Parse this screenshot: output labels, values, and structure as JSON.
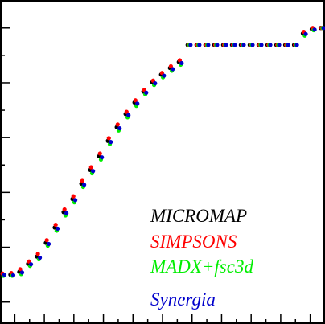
{
  "chart_data": {
    "type": "scatter",
    "x": [
      0.2,
      0.8,
      1.4,
      2.0,
      2.6,
      3.2,
      3.8,
      4.4,
      5.0,
      5.6,
      6.2,
      6.8,
      7.4,
      8.0,
      8.6,
      9.2,
      9.8,
      10.4,
      11.0,
      11.6,
      12.2,
      12.8,
      13.4,
      14.0,
      14.6,
      15.2,
      15.8,
      16.4,
      17.0,
      17.6,
      18.2,
      18.8,
      19.4,
      20.0,
      20.6,
      21.2,
      21.8
    ],
    "series": [
      {
        "name": "MICROMAP",
        "color": "#000000",
        "values": [
          0.5,
          0.5,
          0.55,
          0.7,
          0.83,
          1.08,
          1.36,
          1.64,
          1.88,
          2.16,
          2.41,
          2.66,
          2.94,
          3.19,
          3.43,
          3.64,
          3.84,
          4.01,
          4.15,
          4.27,
          4.38,
          4.69,
          4.69,
          4.69,
          4.69,
          4.69,
          4.69,
          4.69,
          4.69,
          4.69,
          4.69,
          4.69,
          4.69,
          4.69,
          4.9,
          4.98,
          5.0
        ]
      },
      {
        "name": "SIMPSONS",
        "color": "#ff0000",
        "values": [
          0.52,
          0.53,
          0.6,
          0.74,
          0.88,
          1.13,
          1.41,
          1.69,
          1.93,
          2.21,
          2.46,
          2.71,
          2.99,
          3.24,
          3.47,
          3.68,
          3.87,
          4.04,
          4.18,
          4.3,
          4.41,
          4.69,
          4.69,
          4.69,
          4.69,
          4.69,
          4.69,
          4.69,
          4.69,
          4.69,
          4.69,
          4.69,
          4.69,
          4.69,
          4.93,
          5.0,
          5.0
        ]
      },
      {
        "name": "MADX+fsc3d",
        "color": "#00ee00",
        "values": [
          0.48,
          0.48,
          0.51,
          0.66,
          0.78,
          1.03,
          1.3,
          1.58,
          1.82,
          2.1,
          2.35,
          2.6,
          2.88,
          3.13,
          3.37,
          3.58,
          3.79,
          3.96,
          4.1,
          4.22,
          4.33,
          4.69,
          4.69,
          4.69,
          4.69,
          4.69,
          4.69,
          4.69,
          4.69,
          4.69,
          4.69,
          4.69,
          4.69,
          4.69,
          4.86,
          4.96,
          5.0
        ]
      },
      {
        "name": "Synergia",
        "color": "#0000cc",
        "values": [
          0.5,
          0.49,
          0.54,
          0.69,
          0.81,
          1.06,
          1.34,
          1.62,
          1.86,
          2.14,
          2.39,
          2.64,
          2.92,
          3.17,
          3.41,
          3.62,
          3.82,
          3.99,
          4.13,
          4.25,
          4.36,
          4.69,
          4.69,
          4.69,
          4.69,
          4.69,
          4.69,
          4.69,
          4.69,
          4.69,
          4.69,
          4.69,
          4.69,
          4.69,
          4.89,
          4.97,
          5.0
        ]
      }
    ],
    "xlim": [
      0,
      22
    ],
    "xticks": [
      1,
      2,
      3,
      4,
      5,
      6,
      7,
      8,
      9,
      10,
      11,
      12,
      13,
      14,
      15,
      16,
      17,
      18,
      19,
      20,
      21
    ],
    "ylim": [
      -0.4,
      5.51
    ],
    "yticks": [
      0,
      0.5,
      1,
      1.5,
      2,
      2.5,
      3,
      3.5,
      4,
      4.5,
      5
    ]
  }
}
